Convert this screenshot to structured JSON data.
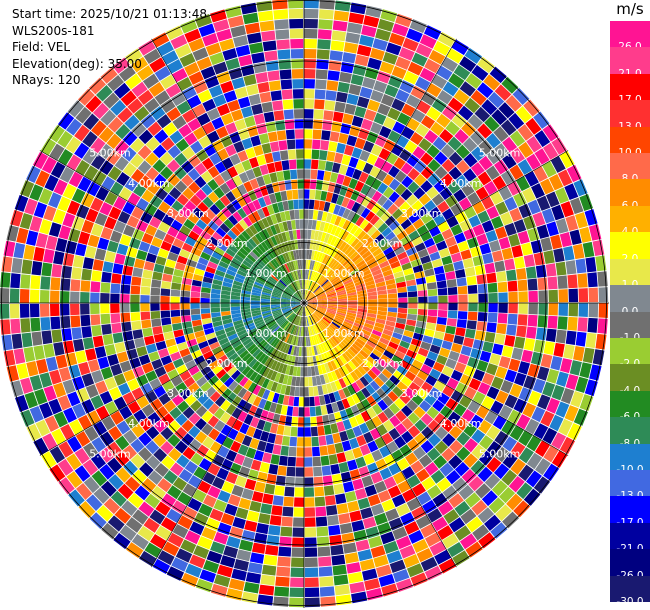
{
  "header": {
    "start_time": "Start time: 2025/10/21 01:13:48",
    "site": "WLS200s-181",
    "field": "Field: VEL",
    "elevation": "Elevation(deg): 35.00",
    "nrays": "NRays: 120"
  },
  "colorbar": {
    "unit": "m/s",
    "ticks": [
      "26.0",
      "21.0",
      "17.0",
      "13.0",
      "10.0",
      "8.0",
      "6.0",
      "4.0",
      "2.0",
      "1.0",
      "0.0",
      "-1.0",
      "-2.0",
      "-4.0",
      "-6.0",
      "-8.0",
      "-10.0",
      "-13.0",
      "-17.0",
      "-21.0",
      "-26.0",
      "-30.0"
    ],
    "colors": [
      "#ff1493",
      "#ff3c8c",
      "#ff0000",
      "#ff3030",
      "#ff4500",
      "#ff6a4a",
      "#ff8c00",
      "#ffb000",
      "#ffff00",
      "#e8e84a",
      "#808890",
      "#707070",
      "#9acd32",
      "#6b8e23",
      "#228b22",
      "#2e8b57",
      "#1e7fd0",
      "#4169e1",
      "#0000ff",
      "#0000a0",
      "#000080",
      "#191970"
    ]
  },
  "ring_labels": [
    "1.00km",
    "2.00km",
    "3.00km",
    "4.00km",
    "5.00km"
  ],
  "scan": {
    "rays": 120,
    "gates": 30
  }
}
